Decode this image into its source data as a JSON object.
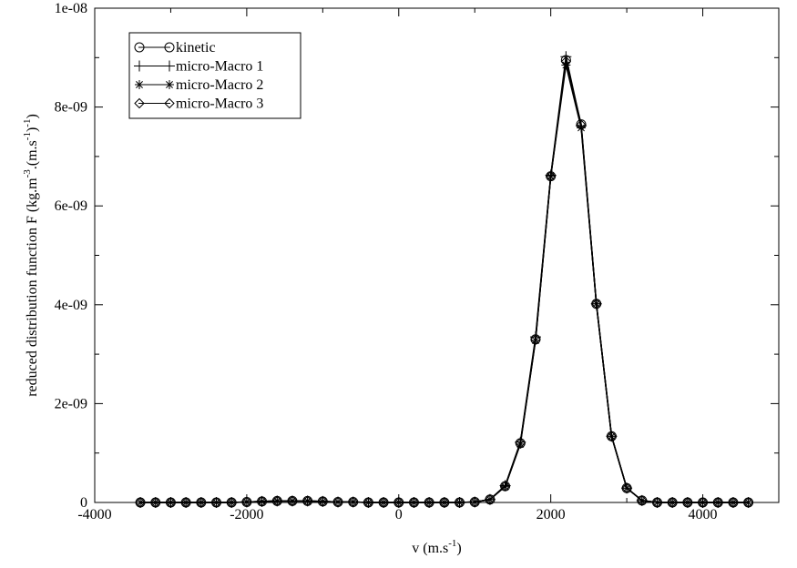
{
  "chart_data": {
    "type": "line",
    "title": "",
    "xlabel": "v (m.s",
    "xlabel_sup": "-1",
    "xlabel_tail": ")",
    "ylabel": "reduced distribution function F (kg.m",
    "ylabel_sup1": "-3",
    "ylabel_mid": ".(m.s",
    "ylabel_sup2": "-1",
    "ylabel_mid2": ")",
    "ylabel_sup3": "-1",
    "ylabel_tail": ")",
    "xlim": [
      -4000,
      5000
    ],
    "ylim": [
      0,
      1e-08
    ],
    "xticks": [
      -4000,
      -2000,
      0,
      2000,
      4000
    ],
    "xtick_labels": [
      "-4000",
      "-2000",
      "0",
      "2000",
      "4000"
    ],
    "yticks": [
      0,
      2e-09,
      4e-09,
      6e-09,
      8e-09,
      1e-08
    ],
    "ytick_labels": [
      "0",
      "2e-09",
      "4e-09",
      "6e-09",
      "8e-09",
      "1e-08"
    ],
    "grid": false,
    "legend_position": "top-left",
    "x": [
      -3400,
      -3200,
      -3000,
      -2800,
      -2600,
      -2400,
      -2200,
      -2000,
      -1800,
      -1600,
      -1400,
      -1200,
      -1000,
      -800,
      -600,
      -400,
      -200,
      0,
      200,
      400,
      600,
      800,
      1000,
      1200,
      1400,
      1600,
      1800,
      2000,
      2200,
      2400,
      2600,
      2800,
      3000,
      3200,
      3400,
      3600,
      3800,
      4000,
      4200,
      4400,
      4600
    ],
    "series": [
      {
        "name": "kinetic",
        "marker": "circle",
        "values": [
          0,
          0,
          0,
          0,
          0,
          0,
          0,
          1e-11,
          2e-11,
          3e-11,
          3e-11,
          3e-11,
          2e-11,
          1e-11,
          1e-11,
          0,
          0,
          0,
          0,
          0,
          0,
          0,
          1e-11,
          6e-11,
          3.3e-10,
          1.2e-09,
          3.3e-09,
          6.6e-09,
          8.95e-09,
          7.65e-09,
          4.02e-09,
          1.34e-09,
          2.9e-10,
          4e-11,
          0,
          0,
          0,
          0,
          0,
          0,
          0
        ]
      },
      {
        "name": "micro-Macro 1",
        "marker": "plus",
        "values": [
          0,
          0,
          0,
          0,
          0,
          0,
          0,
          1e-11,
          2e-11,
          3e-11,
          3e-11,
          3e-11,
          2e-11,
          1e-11,
          1e-11,
          0,
          0,
          0,
          0,
          0,
          0,
          0,
          1e-11,
          6e-11,
          3.4e-10,
          1.22e-09,
          3.35e-09,
          6.62e-09,
          9.02e-09,
          7.62e-09,
          4.02e-09,
          1.34e-09,
          2.9e-10,
          4e-11,
          0,
          0,
          0,
          0,
          0,
          0,
          0
        ]
      },
      {
        "name": "micro-Macro 2",
        "marker": "star",
        "values": [
          0,
          0,
          0,
          0,
          0,
          0,
          0,
          1e-11,
          2e-11,
          3e-11,
          3e-11,
          3e-11,
          2e-11,
          1e-11,
          1e-11,
          0,
          0,
          0,
          0,
          0,
          0,
          0,
          1e-11,
          6e-11,
          3.2e-10,
          1.18e-09,
          3.28e-09,
          6.6e-09,
          8.85e-09,
          7.58e-09,
          4.02e-09,
          1.34e-09,
          2.9e-10,
          4e-11,
          0,
          0,
          0,
          0,
          0,
          0,
          0
        ]
      },
      {
        "name": "micro-Macro 3",
        "marker": "diamond",
        "values": [
          0,
          0,
          0,
          0,
          0,
          0,
          0,
          1e-11,
          2e-11,
          3e-11,
          3e-11,
          3e-11,
          2e-11,
          1e-11,
          1e-11,
          0,
          0,
          0,
          0,
          0,
          0,
          0,
          1e-11,
          6e-11,
          3.3e-10,
          1.2e-09,
          3.3e-09,
          6.6e-09,
          8.92e-09,
          7.64e-09,
          4.02e-09,
          1.34e-09,
          2.9e-10,
          4e-11,
          0,
          0,
          0,
          0,
          0,
          0,
          0
        ]
      }
    ]
  }
}
